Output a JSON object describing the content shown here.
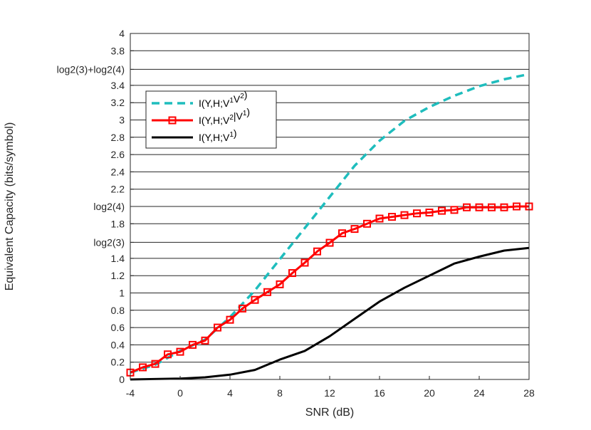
{
  "chart_data": {
    "type": "line",
    "title": "",
    "xlabel": "SNR (dB)",
    "ylabel": "Equivalent Capacity (bits/symbol)",
    "xlim": [
      -4,
      28
    ],
    "ylim": [
      0,
      4
    ],
    "x_ticks": [
      -4,
      0,
      4,
      8,
      12,
      16,
      20,
      24,
      28
    ],
    "x_tick_labels": [
      "-4",
      "0",
      "4",
      "8",
      "12",
      "16",
      "20",
      "24",
      "28"
    ],
    "y_ticks": [
      {
        "value": 0,
        "label": "0"
      },
      {
        "value": 0.2,
        "label": "0.2"
      },
      {
        "value": 0.4,
        "label": "0.4"
      },
      {
        "value": 0.6,
        "label": "0.6"
      },
      {
        "value": 0.8,
        "label": "0.8"
      },
      {
        "value": 1.0,
        "label": "1"
      },
      {
        "value": 1.2,
        "label": "1.2"
      },
      {
        "value": 1.4,
        "label": "1.4"
      },
      {
        "value": 1.585,
        "label": "log2(3)"
      },
      {
        "value": 1.8,
        "label": "1.8"
      },
      {
        "value": 2.0,
        "label": "log2(4)"
      },
      {
        "value": 2.2,
        "label": "2.2"
      },
      {
        "value": 2.4,
        "label": "2.4"
      },
      {
        "value": 2.6,
        "label": "2.6"
      },
      {
        "value": 2.8,
        "label": "2.8"
      },
      {
        "value": 3.0,
        "label": "3"
      },
      {
        "value": 3.2,
        "label": "3.2"
      },
      {
        "value": 3.4,
        "label": "3.4"
      },
      {
        "value": 3.585,
        "label": "log2(3)+log2(4)"
      },
      {
        "value": 3.8,
        "label": "3.8"
      },
      {
        "value": 4.0,
        "label": "4"
      }
    ],
    "grid": "horizontal",
    "legend_position": "upper-left",
    "series": [
      {
        "name": "I(Y,H;V1V2)",
        "legend_base": "I(Y,H;V",
        "legend_sup1": "1",
        "legend_mid": "V",
        "legend_sup2": "2",
        "legend_end": ")",
        "color": "#1fbdbd",
        "style": "dashed",
        "marker": "none",
        "x": [
          -4,
          -2,
          0,
          2,
          4,
          6,
          8,
          10,
          12,
          14,
          16,
          18,
          20,
          22,
          24,
          26,
          28
        ],
        "y": [
          0.08,
          0.17,
          0.33,
          0.46,
          0.72,
          1.03,
          1.39,
          1.75,
          2.11,
          2.47,
          2.76,
          2.99,
          3.15,
          3.28,
          3.39,
          3.47,
          3.53
        ]
      },
      {
        "name": "I(Y,H;V2|V1)",
        "legend_base": "I(Y,H;V",
        "legend_sup1": "2",
        "legend_mid": "|V",
        "legend_sup2": "1",
        "legend_end": ")",
        "color": "#ff0000",
        "style": "solid",
        "marker": "square",
        "x": [
          -4,
          -3,
          -2,
          -1,
          0,
          1,
          2,
          3,
          4,
          5,
          6,
          7,
          8,
          9,
          10,
          11,
          12,
          13,
          14,
          15,
          16,
          17,
          18,
          19,
          20,
          21,
          22,
          23,
          24,
          25,
          26,
          27,
          28
        ],
        "y": [
          0.08,
          0.14,
          0.18,
          0.29,
          0.32,
          0.4,
          0.45,
          0.6,
          0.69,
          0.82,
          0.92,
          1.01,
          1.1,
          1.23,
          1.35,
          1.48,
          1.58,
          1.69,
          1.74,
          1.8,
          1.86,
          1.88,
          1.9,
          1.92,
          1.93,
          1.95,
          1.96,
          1.99,
          1.99,
          1.99,
          1.99,
          2.0,
          2.0
        ]
      },
      {
        "name": "I(Y,H;V1)",
        "legend_base": "I(Y,H;V",
        "legend_sup1": "1",
        "legend_mid": "",
        "legend_sup2": "",
        "legend_end": ")",
        "color": "#000000",
        "style": "solid",
        "marker": "none",
        "x": [
          -4,
          -2,
          0,
          2,
          4,
          6,
          8,
          10,
          12,
          14,
          16,
          18,
          20,
          22,
          24,
          26,
          28
        ],
        "y": [
          0.0,
          0.005,
          0.01,
          0.025,
          0.055,
          0.11,
          0.23,
          0.33,
          0.5,
          0.7,
          0.9,
          1.06,
          1.2,
          1.34,
          1.42,
          1.49,
          1.52
        ]
      }
    ]
  }
}
